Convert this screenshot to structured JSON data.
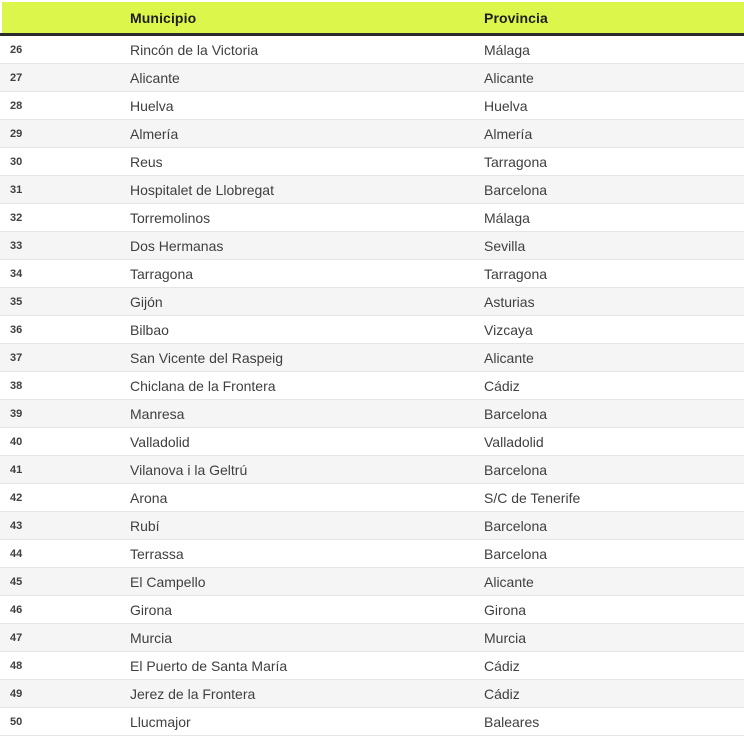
{
  "chart_data": {
    "type": "table",
    "columns": [
      {
        "key": "rank",
        "label": ""
      },
      {
        "key": "municipio",
        "label": "Municipio"
      },
      {
        "key": "provincia",
        "label": "Provincia"
      }
    ],
    "rows": [
      {
        "rank": "26",
        "municipio": "Rincón de la Victoria",
        "provincia": "Málaga"
      },
      {
        "rank": "27",
        "municipio": "Alicante",
        "provincia": "Alicante"
      },
      {
        "rank": "28",
        "municipio": "Huelva",
        "provincia": "Huelva"
      },
      {
        "rank": "29",
        "municipio": "Almería",
        "provincia": "Almería"
      },
      {
        "rank": "30",
        "municipio": "Reus",
        "provincia": "Tarragona"
      },
      {
        "rank": "31",
        "municipio": "Hospitalet de Llobregat",
        "provincia": "Barcelona"
      },
      {
        "rank": "32",
        "municipio": "Torremolinos",
        "provincia": "Málaga"
      },
      {
        "rank": "33",
        "municipio": "Dos Hermanas",
        "provincia": "Sevilla"
      },
      {
        "rank": "34",
        "municipio": "Tarragona",
        "provincia": "Tarragona"
      },
      {
        "rank": "35",
        "municipio": "Gijón",
        "provincia": "Asturias"
      },
      {
        "rank": "36",
        "municipio": "Bilbao",
        "provincia": "Vizcaya"
      },
      {
        "rank": "37",
        "municipio": "San Vicente del Raspeig",
        "provincia": "Alicante"
      },
      {
        "rank": "38",
        "municipio": "Chiclana de la Frontera",
        "provincia": "Cádiz"
      },
      {
        "rank": "39",
        "municipio": "Manresa",
        "provincia": "Barcelona"
      },
      {
        "rank": "40",
        "municipio": "Valladolid",
        "provincia": "Valladolid"
      },
      {
        "rank": "41",
        "municipio": "Vilanova i la Geltrú",
        "provincia": "Barcelona"
      },
      {
        "rank": "42",
        "municipio": "Arona",
        "provincia": "S/C de Tenerife"
      },
      {
        "rank": "43",
        "municipio": "Rubí",
        "provincia": "Barcelona"
      },
      {
        "rank": "44",
        "municipio": "Terrassa",
        "provincia": "Barcelona"
      },
      {
        "rank": "45",
        "municipio": "El Campello",
        "provincia": "Alicante"
      },
      {
        "rank": "46",
        "municipio": "Girona",
        "provincia": "Girona"
      },
      {
        "rank": "47",
        "municipio": "Murcia",
        "provincia": "Murcia"
      },
      {
        "rank": "48",
        "municipio": "El Puerto de Santa María",
        "provincia": "Cádiz"
      },
      {
        "rank": "49",
        "municipio": "Jerez de la Frontera",
        "provincia": "Cádiz"
      },
      {
        "rank": "50",
        "municipio": "Llucmajor",
        "provincia": "Baleares"
      }
    ],
    "layout": {
      "stripe_pattern": "first_row_white_alternating",
      "header_position": "top"
    },
    "colors": {
      "header_bg": "#ddf64b",
      "header_border": "#2b2b2b",
      "stripe": "#f5f5f5",
      "row_border": "#e6e6e6",
      "text": "#3f3f3f",
      "header_text": "#1d1d1d"
    }
  }
}
